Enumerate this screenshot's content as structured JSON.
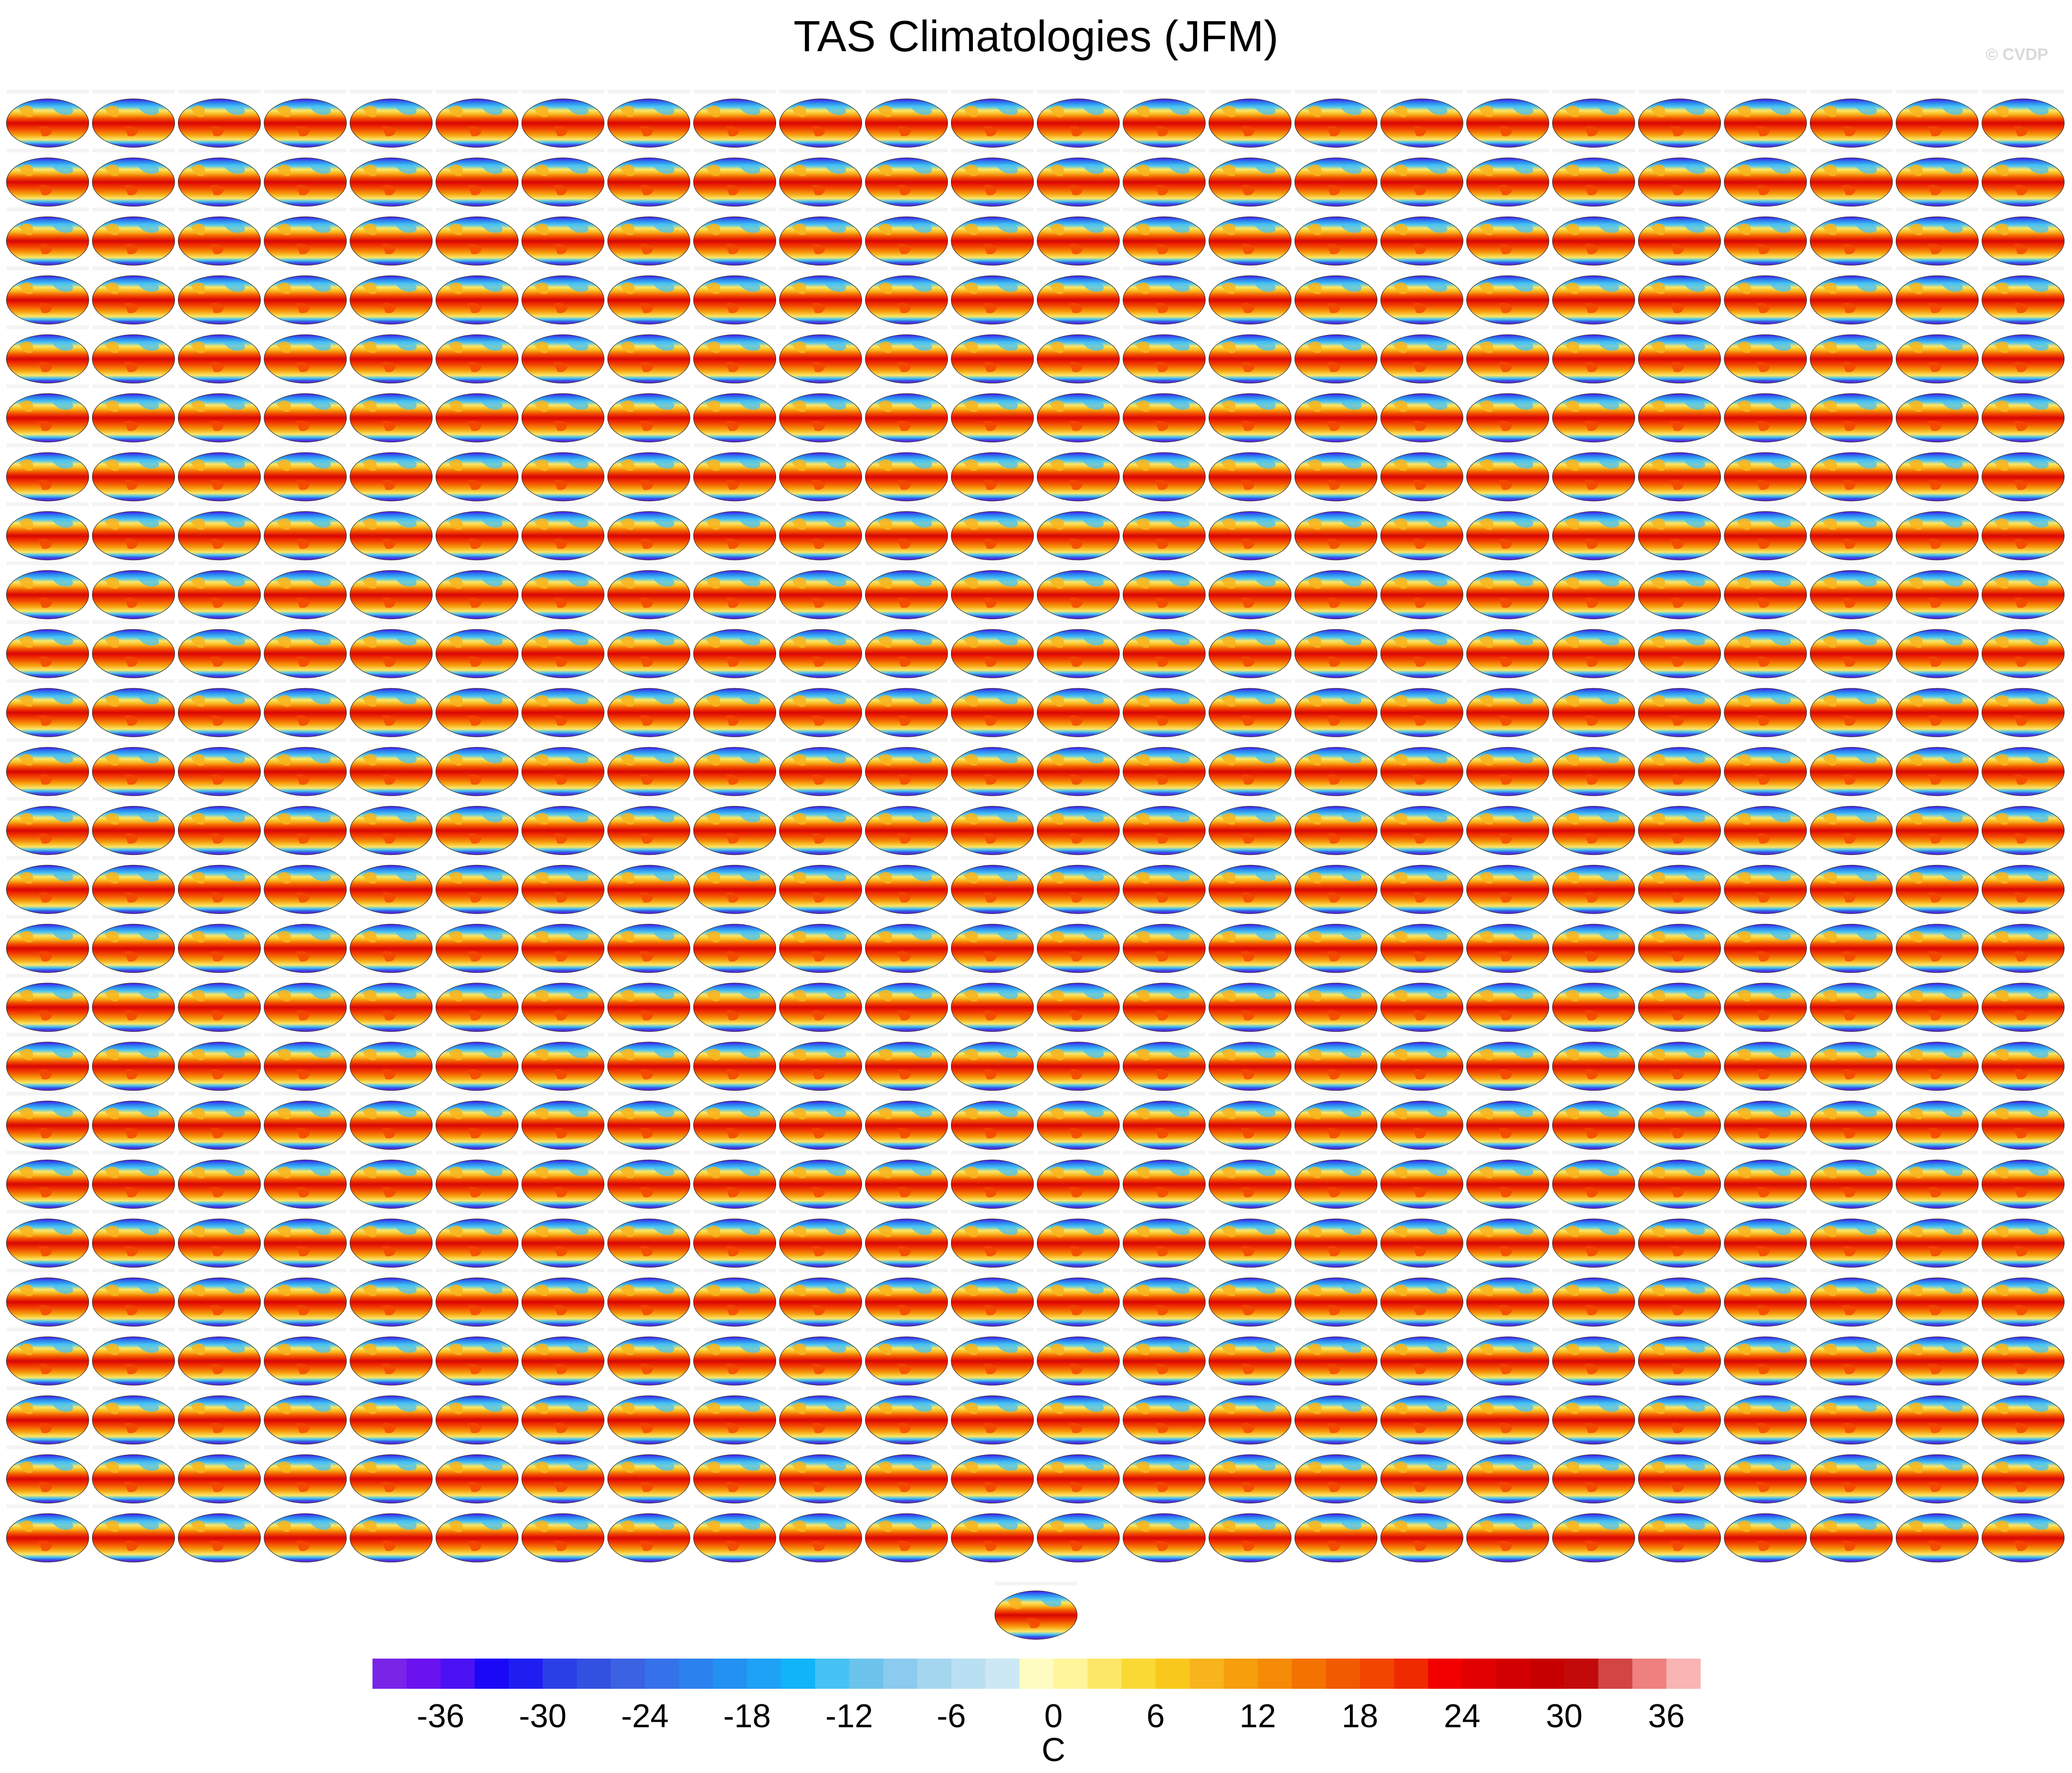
{
  "title": "TAS Climatologies (JFM)",
  "watermark": "© CVDP",
  "chart_data": {
    "type": "heatmap",
    "title": "TAS Climatologies (JFM)",
    "variable": "TAS",
    "season": "JFM",
    "projection": "global map panels",
    "panel_grid": {
      "rows": 25,
      "columns": 24,
      "extra_panels_last_row": 1
    },
    "units_label": "C",
    "colorbar": {
      "ticks": [
        -36,
        -30,
        -24,
        -18,
        -12,
        -6,
        0,
        6,
        12,
        18,
        24,
        30,
        36
      ],
      "levels_min": -40,
      "levels_max": 44,
      "level_step": 2,
      "colors": [
        "#7a24e8",
        "#6a12f0",
        "#4a12f2",
        "#1a08f7",
        "#1e1ef0",
        "#2a40e6",
        "#3351e0",
        "#3a62e2",
        "#3572ea",
        "#2b82ee",
        "#2391f2",
        "#1da2f6",
        "#11b4f8",
        "#46c2f4",
        "#6cc3ec",
        "#8acbee",
        "#a4d6f0",
        "#b9dff2",
        "#cde8f5",
        "#fffcc2",
        "#fff59a",
        "#fde766",
        "#fbd935",
        "#f9c81c",
        "#f8b41c",
        "#f69e0c",
        "#f58a06",
        "#f47200",
        "#f25a00",
        "#f24600",
        "#f02a00",
        "#f20000",
        "#e00000",
        "#d20000",
        "#c60000",
        "#c30a0a",
        "#d34444",
        "#ee8080",
        "#f9b4b4"
      ]
    }
  }
}
